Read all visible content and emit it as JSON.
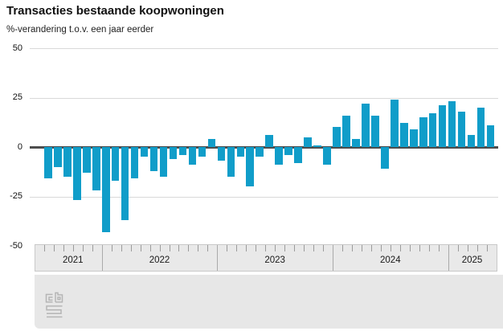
{
  "title": "Transacties bestaande koopwoningen",
  "subtitle": "%-verandering t.o.v. een jaar eerder",
  "chart_data": {
    "type": "bar",
    "title": "Transacties bestaande koopwoningen",
    "subtitle": "%-verandering t.o.v. een jaar eerder",
    "ylim": [
      -50,
      50
    ],
    "yticks": [
      50,
      25,
      0,
      -25,
      -50
    ],
    "grid": true,
    "legend": "none",
    "bar_color": "#109dc9",
    "unit": "percent change year-on-year",
    "frequency": "monthly",
    "years": [
      {
        "label": "2021",
        "values": [
          -16,
          -10,
          -15,
          -27,
          -13,
          -22
        ]
      },
      {
        "label": "2022",
        "values": [
          -43,
          -17,
          -37,
          -16,
          -5,
          -12,
          -15,
          -6,
          -4,
          -9,
          -5,
          4
        ]
      },
      {
        "label": "2023",
        "values": [
          -7,
          -15,
          -5,
          -20,
          -5,
          6,
          -9,
          -4,
          -8,
          5,
          1,
          -9
        ]
      },
      {
        "label": "2024",
        "values": [
          10,
          16,
          4,
          22,
          16,
          -11,
          24,
          12,
          9,
          15,
          17,
          21
        ]
      },
      {
        "label": "2025",
        "values": [
          23,
          18,
          6,
          20,
          11
        ]
      }
    ],
    "logo": "cbs"
  }
}
